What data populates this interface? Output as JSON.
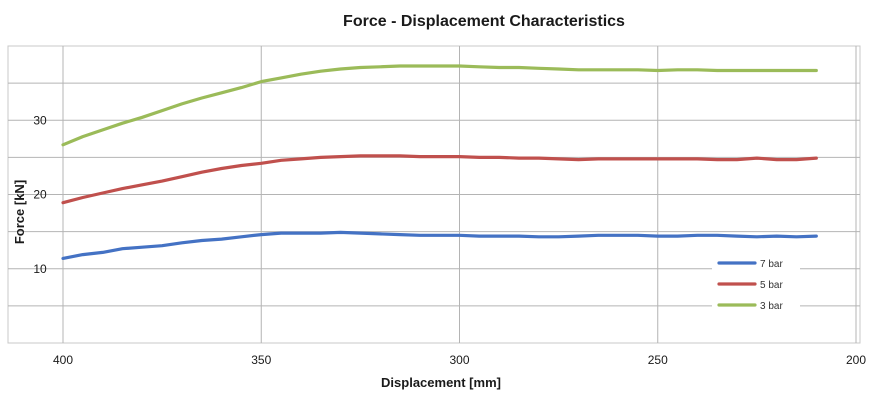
{
  "chart_data": {
    "type": "line",
    "title": "Force - Displacement Characteristics",
    "xlabel": "Displacement [mm]",
    "ylabel": "Force [kN]",
    "xlim": [
      400,
      200
    ],
    "ylim": [
      0,
      40
    ],
    "x_reversed": true,
    "x_ticks": [
      400,
      350,
      300,
      250,
      200
    ],
    "y_ticks": [
      10,
      20,
      30
    ],
    "y_grid_step": 5,
    "grid": true,
    "legend_position": "bottom-right",
    "series": [
      {
        "name": "7 bar",
        "color": "#4472c4",
        "x": [
          400,
          395,
          390,
          385,
          380,
          375,
          370,
          365,
          360,
          355,
          350,
          345,
          340,
          335,
          330,
          325,
          320,
          315,
          310,
          305,
          300,
          295,
          290,
          285,
          280,
          275,
          270,
          265,
          260,
          255,
          250,
          245,
          240,
          235,
          230,
          225,
          220,
          215,
          210
        ],
        "y": [
          11.4,
          11.9,
          12.2,
          12.7,
          12.9,
          13.1,
          13.5,
          13.8,
          14.0,
          14.3,
          14.6,
          14.8,
          14.8,
          14.8,
          14.9,
          14.8,
          14.7,
          14.6,
          14.5,
          14.5,
          14.5,
          14.4,
          14.4,
          14.4,
          14.3,
          14.3,
          14.4,
          14.5,
          14.5,
          14.5,
          14.4,
          14.4,
          14.5,
          14.5,
          14.4,
          14.3,
          14.4,
          14.3,
          14.4
        ]
      },
      {
        "name": "5 bar",
        "color": "#c0504d",
        "x": [
          400,
          395,
          390,
          385,
          380,
          375,
          370,
          365,
          360,
          355,
          350,
          345,
          340,
          335,
          330,
          325,
          320,
          315,
          310,
          305,
          300,
          295,
          290,
          285,
          280,
          275,
          270,
          265,
          260,
          255,
          250,
          245,
          240,
          235,
          230,
          225,
          220,
          215,
          210
        ],
        "y": [
          18.9,
          19.6,
          20.2,
          20.8,
          21.3,
          21.8,
          22.4,
          23.0,
          23.5,
          23.9,
          24.2,
          24.6,
          24.8,
          25.0,
          25.1,
          25.2,
          25.2,
          25.2,
          25.1,
          25.1,
          25.1,
          25.0,
          25.0,
          24.9,
          24.9,
          24.8,
          24.7,
          24.8,
          24.8,
          24.8,
          24.8,
          24.8,
          24.8,
          24.7,
          24.7,
          24.9,
          24.7,
          24.7,
          24.9
        ]
      },
      {
        "name": "3 bar",
        "color": "#9bbb59",
        "x": [
          400,
          395,
          390,
          385,
          380,
          375,
          370,
          365,
          360,
          355,
          350,
          345,
          340,
          335,
          330,
          325,
          320,
          315,
          310,
          305,
          300,
          295,
          290,
          285,
          280,
          275,
          270,
          265,
          260,
          255,
          250,
          245,
          240,
          235,
          230,
          225,
          220,
          215,
          210
        ],
        "y": [
          26.7,
          27.8,
          28.7,
          29.6,
          30.4,
          31.3,
          32.2,
          33.0,
          33.7,
          34.4,
          35.2,
          35.7,
          36.2,
          36.6,
          36.9,
          37.1,
          37.2,
          37.3,
          37.3,
          37.3,
          37.3,
          37.2,
          37.1,
          37.1,
          37.0,
          36.9,
          36.8,
          36.8,
          36.8,
          36.8,
          36.7,
          36.8,
          36.8,
          36.7,
          36.7,
          36.7,
          36.7,
          36.7,
          36.7
        ]
      }
    ]
  }
}
